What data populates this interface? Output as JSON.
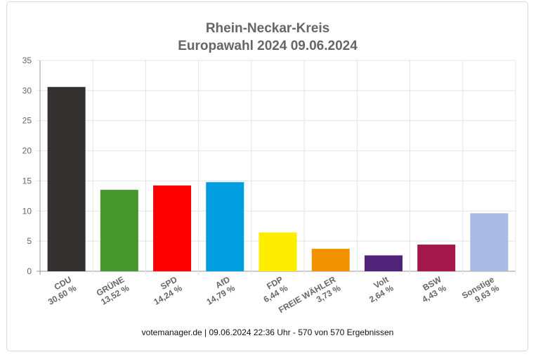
{
  "chart_data": {
    "type": "bar",
    "title": "Rhein-Neckar-Kreis",
    "subtitle": "Europawahl 2024 09.06.2024",
    "categories": [
      "CDU",
      "GRÜNE",
      "SPD",
      "AfD",
      "FDP",
      "FREIE WÄHLER",
      "Volt",
      "BSW",
      "Sonstige"
    ],
    "value_labels": [
      "30,60 %",
      "13,52 %",
      "14,24 %",
      "14,79 %",
      "6,44 %",
      "3,73 %",
      "2,64 %",
      "4,43 %",
      "9,63 %"
    ],
    "values": [
      30.6,
      13.52,
      14.24,
      14.79,
      6.44,
      3.73,
      2.64,
      4.43,
      9.63
    ],
    "colors": [
      "#333230",
      "#46962b",
      "#ff0000",
      "#009ee0",
      "#ffed00",
      "#f39200",
      "#502379",
      "#a2184a",
      "#aabbe3"
    ],
    "ylim": [
      0,
      35
    ],
    "yticks": [
      0,
      5,
      10,
      15,
      20,
      25,
      30,
      35
    ],
    "grid": true,
    "footer": "votemanager.de | 09.06.2024 22:36 Uhr - 570 von 570 Ergebnissen"
  }
}
